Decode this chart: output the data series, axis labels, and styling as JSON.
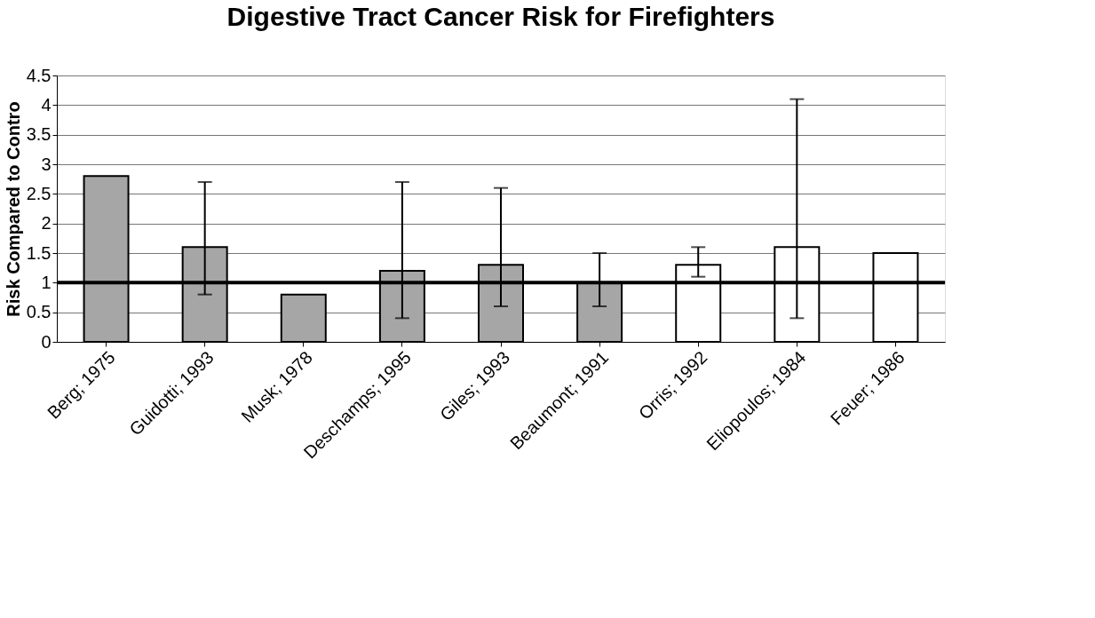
{
  "chart_data": {
    "type": "bar",
    "title": "Digestive Tract Cancer Risk for Firefighters",
    "ylabel": "Risk Compared to Contro",
    "categories": [
      "Berg; 1975",
      "Guidotti; 1993",
      "Musk; 1978",
      "Deschamps;  1995",
      "Giles; 1993",
      "Beaumont; 1991",
      "Orris; 1992",
      "Eliopoulos; 1984",
      "Feuer; 1986"
    ],
    "values": [
      2.8,
      1.6,
      0.8,
      1.2,
      1.3,
      1.0,
      1.3,
      1.6,
      1.5
    ],
    "colors": [
      "#a6a6a6",
      "#a6a6a6",
      "#a6a6a6",
      "#a6a6a6",
      "#a6a6a6",
      "#a6a6a6",
      "#ffffff",
      "#ffffff",
      "#ffffff"
    ],
    "errors": [
      null,
      [
        0.8,
        2.7
      ],
      null,
      [
        0.4,
        2.7
      ],
      [
        0.6,
        2.6
      ],
      [
        0.6,
        1.5
      ],
      [
        1.1,
        1.6
      ],
      [
        0.4,
        4.1
      ],
      null
    ],
    "ylim": [
      0,
      4.5
    ],
    "yticks": [
      0,
      0.5,
      1,
      1.5,
      2,
      2.5,
      3,
      3.5,
      4,
      4.5
    ],
    "grid": "y",
    "ref_lines": [
      {
        "axis": "y",
        "value": 1,
        "color": "#000000"
      }
    ]
  }
}
